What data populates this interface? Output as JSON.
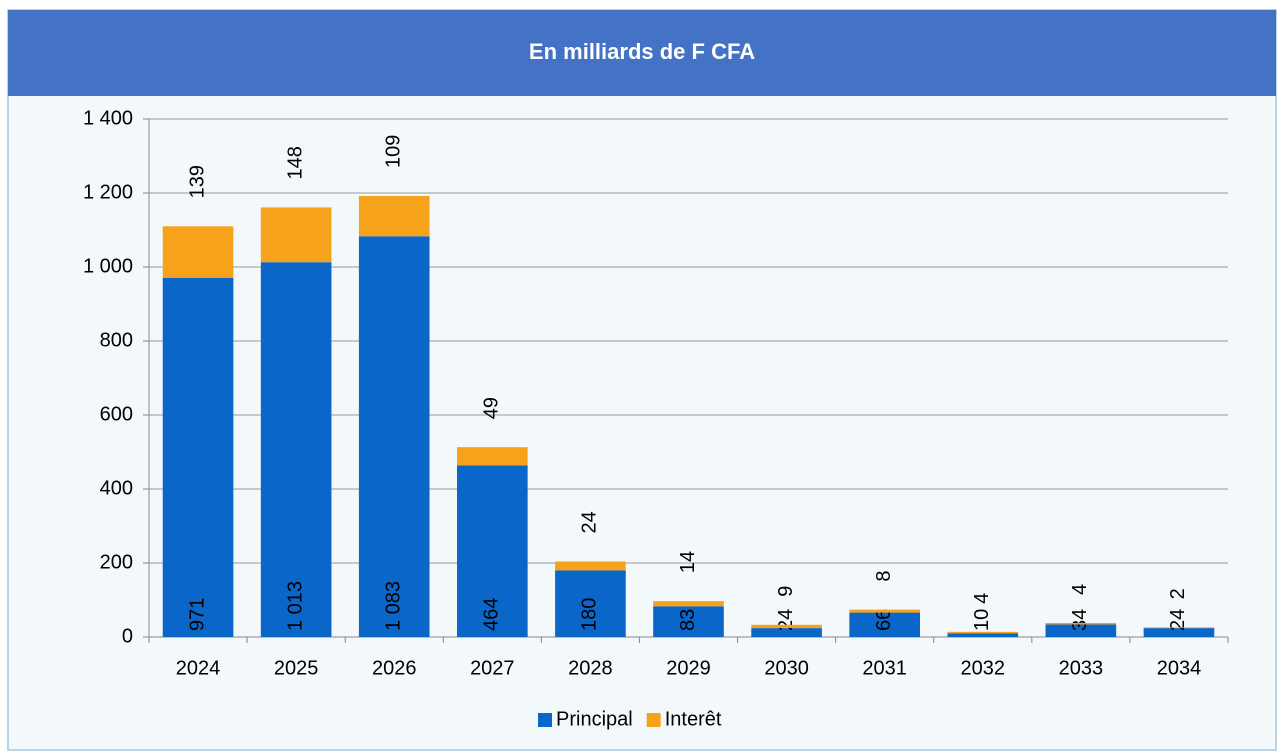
{
  "chart_data": {
    "type": "stacked_bar",
    "title": "En milliards de F CFA",
    "categories": [
      "2024",
      "2025",
      "2026",
      "2027",
      "2028",
      "2029",
      "2030",
      "2031",
      "2032",
      "2033",
      "2034"
    ],
    "series": [
      {
        "name": "Principal",
        "color": "#0a66c8",
        "values": [
          971,
          1013,
          1083,
          464,
          180,
          83,
          24,
          66,
          10,
          34,
          24
        ],
        "value_labels": [
          "971",
          "1 013",
          "1 083",
          "464",
          "180",
          "83",
          "24",
          "66",
          "10",
          "34",
          "24"
        ]
      },
      {
        "name": "Interêt",
        "color": "#f7a21b",
        "values": [
          139,
          148,
          109,
          49,
          24,
          14,
          9,
          8,
          4,
          4,
          2
        ]
      }
    ],
    "ylim": [
      0,
      1400
    ],
    "yticks": [
      0,
      200,
      400,
      600,
      800,
      {
        "value": 1000,
        "label": "1 000"
      },
      {
        "value": 1200,
        "label": "1 200"
      },
      {
        "value": 1400,
        "label": "1 400"
      }
    ],
    "grid": true,
    "legend": "bottom"
  }
}
